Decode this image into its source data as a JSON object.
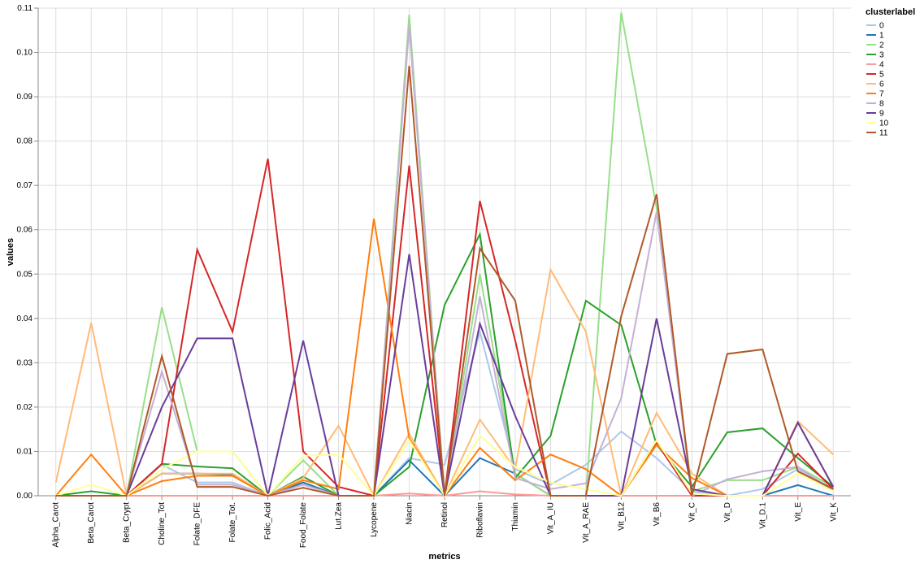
{
  "chart_data": {
    "type": "line",
    "xlabel": "metrics",
    "ylabel": "values",
    "ylim": [
      0,
      0.11
    ],
    "yticks": [
      "0.00",
      "0.01",
      "0.02",
      "0.03",
      "0.04",
      "0.05",
      "0.06",
      "0.07",
      "0.08",
      "0.09",
      "0.10",
      "0.11"
    ],
    "grid": true,
    "legend": {
      "title": "clusterlabel",
      "placement": "right"
    },
    "categories": [
      "Alpha_Carot",
      "Beta_Carot",
      "Beta_Crypt",
      "Choline_Tot",
      "Folate_DFE",
      "Folate_Tot.",
      "Folic_Acid",
      "Food_Folate",
      "Lut.Zea",
      "Lycopene",
      "Niacin",
      "Retinol",
      "Riboflavin",
      "Thiamin",
      "Vit_A_IU",
      "Vit_A_RAE",
      "Vit_B12",
      "Vit_B6",
      "Vit_C",
      "Vit_D",
      "Vit_D.1",
      "Vit_E",
      "Vit_K"
    ],
    "series": [
      {
        "name": "0",
        "color": "#aec7e8",
        "values": [
          0,
          0,
          0,
          0.007,
          0.003,
          0.003,
          0,
          0.003,
          0,
          0,
          0.0085,
          0.007,
          0.037,
          0.006,
          0.0025,
          0.007,
          0.0145,
          0.0085,
          0.001,
          0,
          0.0015,
          0.006,
          0.0015
        ]
      },
      {
        "name": "1",
        "color": "#1f77b4",
        "values": [
          0,
          0,
          0,
          0.005,
          0.005,
          0.0048,
          0,
          0.003,
          0,
          0,
          0.008,
          0,
          0.0085,
          0.005,
          0,
          0,
          0,
          0.0125,
          0,
          0,
          0,
          0.0024,
          0
        ]
      },
      {
        "name": "2",
        "color": "#98df8a",
        "values": [
          0,
          0,
          0,
          0.0425,
          0.01,
          0.01,
          0,
          0.008,
          0,
          0,
          0.1085,
          0,
          0.05,
          0.005,
          0,
          0,
          0.109,
          0.065,
          0.001,
          0.0035,
          0.0035,
          0.0065,
          0.002
        ]
      },
      {
        "name": "3",
        "color": "#2ca02c",
        "values": [
          0,
          0.001,
          0,
          0.0072,
          0.0066,
          0.0062,
          0,
          0.0043,
          0,
          0,
          0.0065,
          0.043,
          0.059,
          0.004,
          0.0135,
          0.044,
          0.0385,
          0.0115,
          0.002,
          0.0143,
          0.0152,
          0.0085,
          0.002
        ]
      },
      {
        "name": "4",
        "color": "#ff9896",
        "values": [
          0,
          0,
          0,
          0,
          0,
          0,
          0,
          0,
          0,
          0,
          0.0005,
          0,
          0.001,
          0.0003,
          0,
          0,
          0,
          0,
          0,
          0,
          0,
          0,
          0
        ]
      },
      {
        "name": "5",
        "color": "#d62728",
        "values": [
          0,
          0,
          0,
          0.0072,
          0.0555,
          0.037,
          0.076,
          0.01,
          0.002,
          0,
          0.0745,
          0,
          0.0665,
          0.035,
          0,
          0,
          0,
          0.012,
          0,
          0,
          0,
          0.0095,
          0.0015
        ]
      },
      {
        "name": "6",
        "color": "#ffbb78",
        "values": [
          0.003,
          0.039,
          0,
          0.005,
          0.005,
          0.005,
          0,
          0.004,
          0.0158,
          0,
          0.014,
          0,
          0.0172,
          0.006,
          0.051,
          0.037,
          0,
          0.0187,
          0.005,
          0,
          0,
          0.0168,
          0.0093
        ]
      },
      {
        "name": "7",
        "color": "#ff7f0e",
        "values": [
          0,
          0.0093,
          0,
          0.0033,
          0.0045,
          0.0045,
          0,
          0.0035,
          0.0015,
          0.0625,
          0.013,
          0,
          0.0108,
          0.0035,
          0.0093,
          0.006,
          0,
          0.0115,
          0.004,
          0,
          0,
          0.0165,
          0.002
        ]
      },
      {
        "name": "8",
        "color": "#c5b0d5",
        "values": [
          0,
          0,
          0,
          0.028,
          0.0025,
          0.0025,
          0,
          0.0025,
          0,
          0,
          0.106,
          0,
          0.045,
          0.004,
          0.0015,
          0.0028,
          0.022,
          0.064,
          0,
          0.0037,
          0.0055,
          0.0065,
          0.001
        ]
      },
      {
        "name": "9",
        "color": "#6a3d9a",
        "values": [
          0,
          0,
          0,
          0.02,
          0.0355,
          0.0355,
          0,
          0.035,
          0,
          0,
          0.0545,
          0,
          0.0388,
          0.018,
          0,
          0,
          0,
          0.04,
          0.0015,
          0,
          0,
          0.0165,
          0.002
        ]
      },
      {
        "name": "10",
        "color": "#ffff99",
        "values": [
          0,
          0.0025,
          0,
          0.006,
          0.01,
          0.01,
          0,
          0.009,
          0.0093,
          0,
          0.0125,
          0,
          0.0135,
          0.0065,
          0.003,
          0.0015,
          0,
          0.0125,
          0.0005,
          0,
          0,
          0.005,
          0.001
        ]
      },
      {
        "name": "11",
        "color": "#b15928",
        "values": [
          0,
          0,
          0,
          0.0315,
          0.002,
          0.002,
          0,
          0.0018,
          0,
          0,
          0.097,
          0,
          0.0558,
          0.044,
          0,
          0,
          0.0405,
          0.068,
          0,
          0.032,
          0.033,
          0.0055,
          0.0015
        ]
      }
    ]
  }
}
